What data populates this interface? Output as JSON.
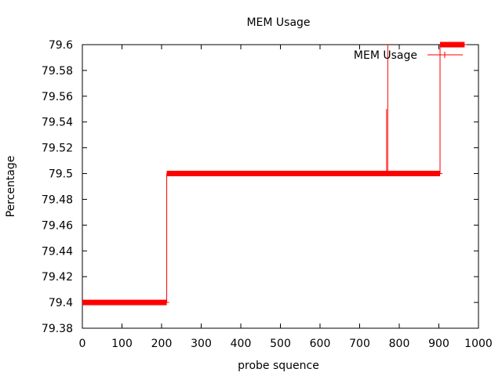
{
  "chart_data": {
    "type": "line",
    "title": "MEM Usage",
    "xlabel": "probe squence",
    "ylabel": "Percentage",
    "xlim": [
      0,
      1000
    ],
    "ylim": [
      79.38,
      79.6
    ],
    "x_ticks": [
      "0",
      "100",
      "200",
      "300",
      "400",
      "500",
      "600",
      "700",
      "800",
      "900",
      "1000"
    ],
    "y_ticks": [
      "79.38",
      "79.4",
      "79.42",
      "79.44",
      "79.46",
      "79.48",
      "79.5",
      "79.52",
      "79.54",
      "79.56",
      "79.58",
      "79.6"
    ],
    "grid": false,
    "legend_position": "top-right",
    "series": [
      {
        "name": "MEM Usage",
        "color": "#ff0000",
        "segments": [
          {
            "x_start": 0,
            "x_end": 213,
            "y": 79.4
          },
          {
            "x_start": 213,
            "x_end": 903,
            "y": 79.5
          },
          {
            "x_start": 903,
            "x_end": 965,
            "y": 79.6
          }
        ],
        "spikes": [
          {
            "x": 768,
            "y": 79.55
          },
          {
            "x": 771,
            "y": 79.6
          }
        ]
      }
    ]
  }
}
